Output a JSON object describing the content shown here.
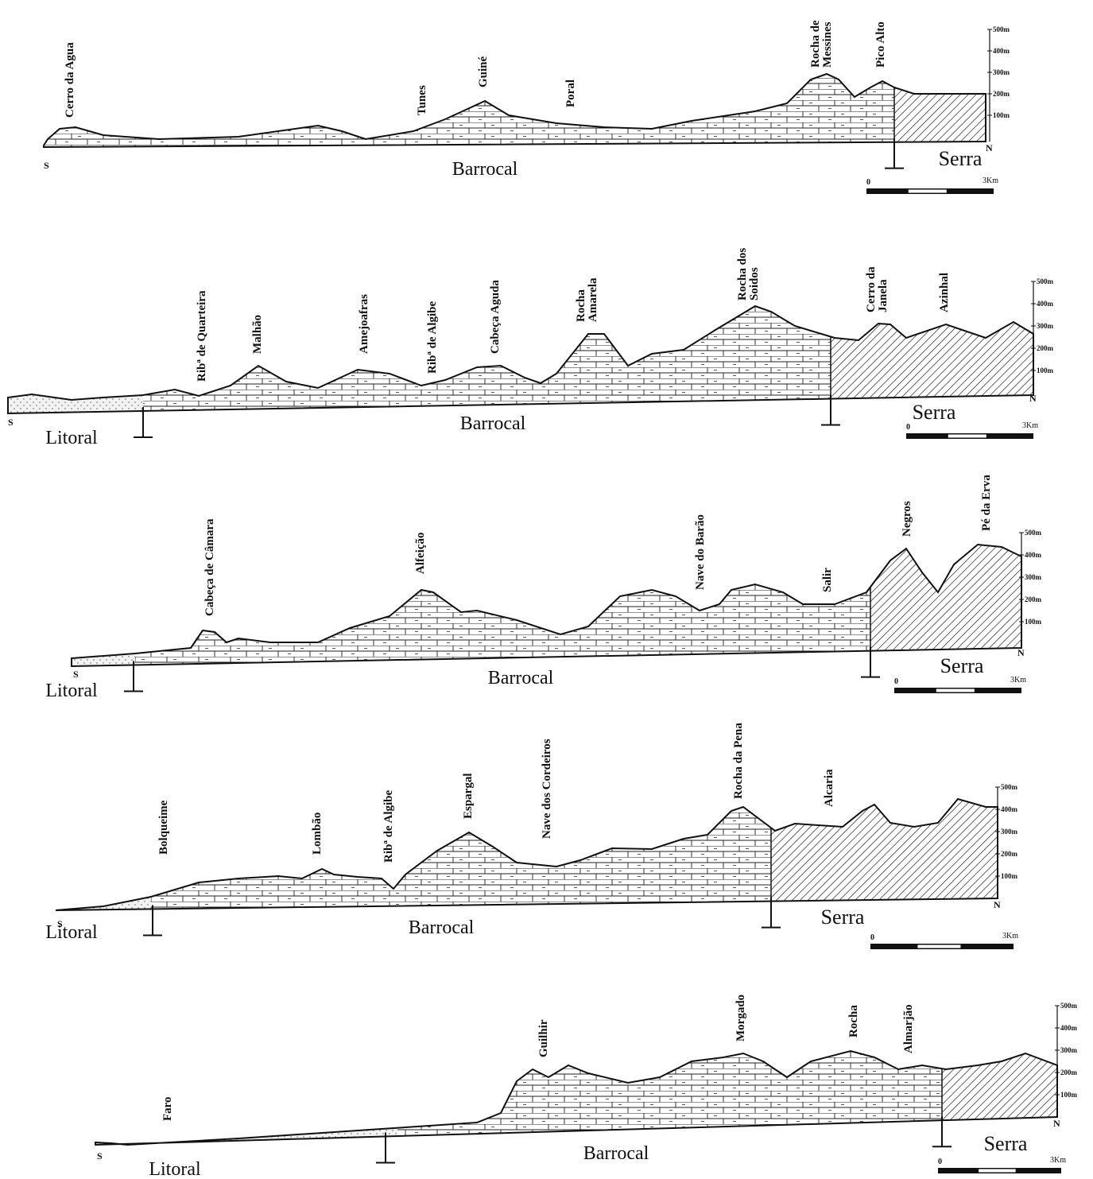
{
  "profiles": [
    {
      "peaks": [
        "Cerro da Agua",
        "Tunes",
        "Guiné",
        "Poral",
        [
          "Rocha de",
          "Messines"
        ],
        "Pico Alto"
      ],
      "regions": {
        "barrocal": "Barrocal",
        "serra": "Serra"
      },
      "south": "S",
      "north": "N",
      "scale_axis": [
        "500m",
        "400m",
        "300m",
        "200m",
        "100m"
      ],
      "scale_bar": [
        "0",
        "3Km"
      ]
    },
    {
      "peaks": [
        "Ribª de Quarteira",
        "Malhão",
        "Amejoafras",
        "Ribª de Algibe",
        "Cabeça Aguda",
        [
          "Rocha",
          "Amarela"
        ],
        [
          "Rocha dos",
          "Soidos"
        ],
        [
          "Cerro da",
          "Janela"
        ],
        "Azinhal"
      ],
      "regions": {
        "litoral": "Litoral",
        "barrocal": "Barrocal",
        "serra": "Serra"
      },
      "south": "S",
      "north": "N",
      "scale_axis": [
        "500m",
        "400m",
        "300m",
        "200m",
        "100m"
      ],
      "scale_bar": [
        "0",
        "3Km"
      ]
    },
    {
      "peaks": [
        "Cabeça de Câmara",
        "Alfeição",
        "Nave do Barão",
        "Salir",
        "Negros",
        "Pé da Erva"
      ],
      "regions": {
        "litoral": "Litoral",
        "barrocal": "Barrocal",
        "serra": "Serra"
      },
      "south": "S",
      "north": "N",
      "scale_axis": [
        "500m",
        "400m",
        "300m",
        "200m",
        "100m"
      ],
      "scale_bar": [
        "0",
        "3Km"
      ]
    },
    {
      "peaks": [
        "Bolqueime",
        "Lombão",
        "Ribª de Algibe",
        "Espargal",
        "Nave dos Cordeiros",
        "Rocha da Pena",
        "Alcaria"
      ],
      "regions": {
        "litoral": "Litoral",
        "barrocal": "Barrocal",
        "serra": "Serra"
      },
      "south": "S",
      "north": "N",
      "scale_axis": [
        "500m",
        "400m",
        "300m",
        "200m",
        "100m"
      ],
      "scale_bar": [
        "0",
        "3Km"
      ]
    },
    {
      "peaks": [
        "Faro",
        "Guilhir",
        "Morgado",
        "Rocha",
        "Almarjão"
      ],
      "regions": {
        "litoral": "Litoral",
        "barrocal": "Barrocal",
        "serra": "Serra"
      },
      "south": "S",
      "north": "N",
      "scale_axis": [
        "500m",
        "400m",
        "300m",
        "200m",
        "100m"
      ],
      "scale_bar": [
        "0",
        "3Km"
      ]
    }
  ]
}
